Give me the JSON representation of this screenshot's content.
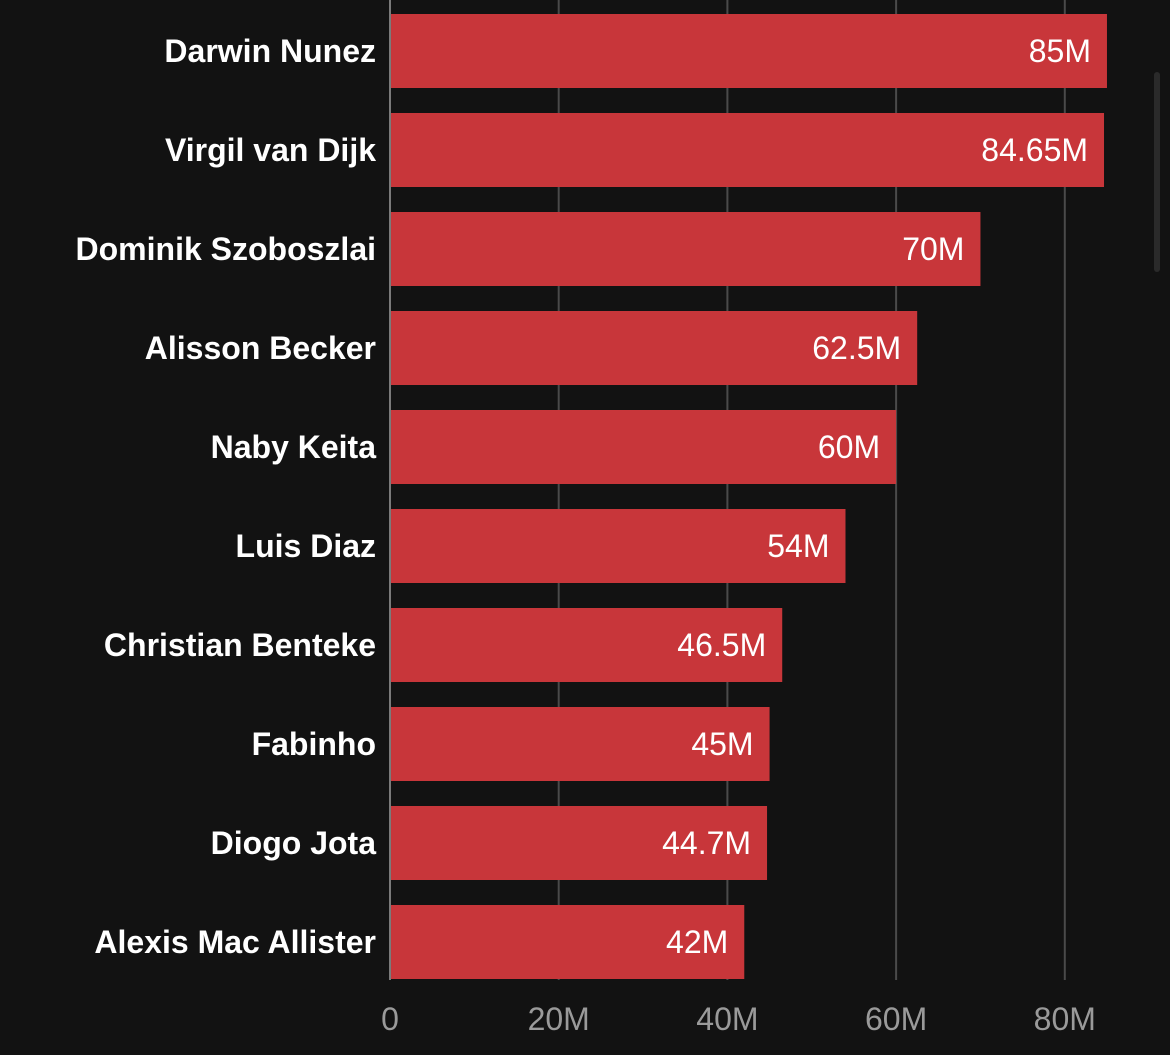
{
  "chart_data": {
    "type": "bar",
    "orientation": "horizontal",
    "title": "",
    "xlabel": "",
    "ylabel": "",
    "categories": [
      "Darwin Nunez",
      "Virgil van Dijk",
      "Dominik Szoboszlai",
      "Alisson Becker",
      "Naby Keita",
      "Luis Diaz",
      "Christian Benteke",
      "Fabinho",
      "Diogo Jota",
      "Alexis Mac Allister"
    ],
    "values": [
      85,
      84.65,
      70,
      62.5,
      60,
      54,
      46.5,
      45,
      44.7,
      42
    ],
    "value_labels": [
      "85M",
      "84.65M",
      "70M",
      "62.5M",
      "60M",
      "54M",
      "46.5M",
      "45M",
      "44.7M",
      "42M"
    ],
    "xlim": [
      0,
      85
    ],
    "ticks": [
      0,
      20,
      40,
      60,
      80
    ],
    "tick_labels": [
      "0",
      "20M",
      "40M",
      "60M",
      "80M"
    ],
    "grid": true,
    "colors": {
      "background": "#121212",
      "bar": "#c8363a",
      "grid": "#4a4a4a",
      "axis": "#7a7a7a",
      "label": "#ffffff",
      "tick": "#9a9a9a"
    }
  }
}
